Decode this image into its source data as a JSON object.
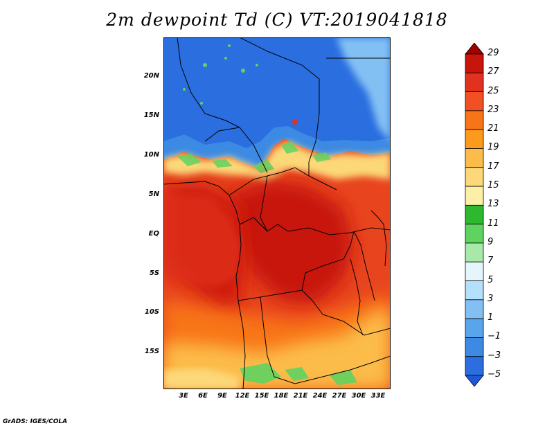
{
  "title": "2m dewpoint Td (C) VT:2019041818",
  "credit": "GrADS: IGES/COLA",
  "map": {
    "lat_labels": [
      "20N",
      "15N",
      "10N",
      "5N",
      "EQ",
      "5S",
      "10S",
      "15S"
    ],
    "lon_labels": [
      "3E",
      "6E",
      "9E",
      "12E",
      "15E",
      "18E",
      "21E",
      "24E",
      "27E",
      "30E",
      "33E"
    ]
  },
  "colorbar": {
    "levels": [
      "29",
      "27",
      "25",
      "23",
      "21",
      "19",
      "17",
      "15",
      "13",
      "11",
      "9",
      "7",
      "5",
      "3",
      "1",
      "−1",
      "−3",
      "−5"
    ],
    "colors": [
      "#a00000",
      "#c8140a",
      "#e0321e",
      "#f05022",
      "#f87418",
      "#fc9a1c",
      "#fcbc4a",
      "#fcd878",
      "#fcf0a8",
      "#2eb82e",
      "#5fd35f",
      "#a8e8a8",
      "#e4f6fc",
      "#b4e0fa",
      "#82c0f4",
      "#5aa4ec",
      "#3c8ae4",
      "#2a6ee0",
      "#1e58d8"
    ]
  }
}
